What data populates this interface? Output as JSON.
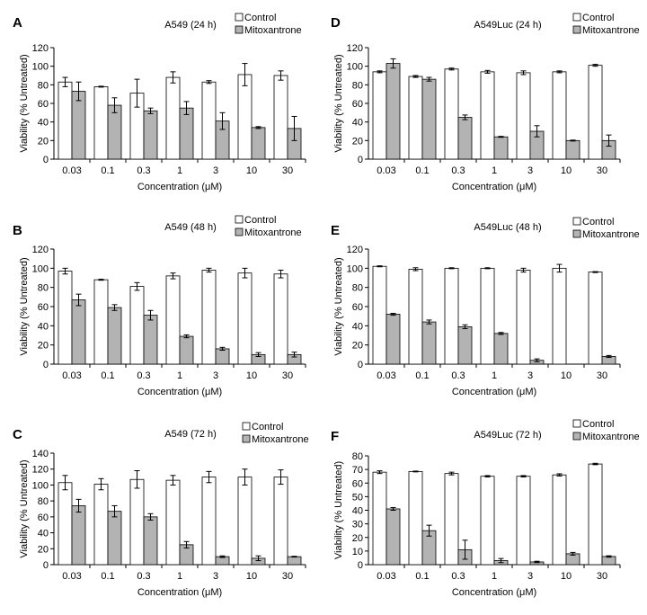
{
  "colors": {
    "control": "#ffffff",
    "mitoxantrone": "#b3b3b3",
    "axis": "#000000"
  },
  "chart_data": [
    {
      "letter": "A",
      "type": "bar",
      "title": "A549 (24 h)",
      "xlabel": "Concentration (μM)",
      "ylabel": "Viability (% Untreated)",
      "ylim": [
        0,
        120
      ],
      "yticks": [
        0,
        20,
        40,
        60,
        80,
        100,
        120
      ],
      "categories": [
        "0.03",
        "0.1",
        "0.3",
        "1",
        "3",
        "10",
        "30"
      ],
      "legend": "top-right",
      "series": [
        {
          "name": "Control",
          "values": [
            83,
            78,
            71,
            88,
            83,
            91,
            90
          ],
          "errors": [
            5,
            0.5,
            15,
            6,
            1.5,
            12,
            5
          ]
        },
        {
          "name": "Mitoxantrone",
          "values": [
            73,
            58,
            52,
            55,
            41,
            34,
            33
          ],
          "errors": [
            10,
            8,
            3,
            7,
            9,
            1,
            13
          ]
        }
      ]
    },
    {
      "letter": "D",
      "type": "bar",
      "title": "A549Luc (24 h)",
      "xlabel": "Concentration (μM)",
      "ylabel": "Viability (% Untreated)",
      "ylim": [
        0,
        120
      ],
      "yticks": [
        0,
        20,
        40,
        60,
        80,
        100,
        120
      ],
      "categories": [
        "0.03",
        "0.1",
        "0.3",
        "1",
        "3",
        "10",
        "30"
      ],
      "legend": "top-right",
      "series": [
        {
          "name": "Control",
          "values": [
            94,
            89,
            97,
            94,
            93,
            94,
            101
          ],
          "errors": [
            1,
            1,
            1,
            1.5,
            2,
            1,
            1
          ]
        },
        {
          "name": "Mitoxantrone",
          "values": [
            103,
            86,
            45,
            24,
            30,
            20,
            20
          ],
          "errors": [
            5,
            2,
            2.5,
            0.5,
            6,
            0.5,
            6
          ]
        }
      ]
    },
    {
      "letter": "B",
      "type": "bar",
      "title": "A549 (48 h)",
      "xlabel": "Concentration (μM)",
      "ylabel": "Viability (% Untreated)",
      "ylim": [
        0,
        120
      ],
      "yticks": [
        0,
        20,
        40,
        60,
        80,
        100,
        120
      ],
      "categories": [
        "0.03",
        "0.1",
        "0.3",
        "1",
        "3",
        "10",
        "30"
      ],
      "legend": "top-right",
      "series": [
        {
          "name": "Control",
          "values": [
            97,
            88,
            81,
            92,
            98,
            95,
            94
          ],
          "errors": [
            3,
            0.5,
            4,
            3,
            2,
            5,
            4
          ]
        },
        {
          "name": "Mitoxantrone",
          "values": [
            67,
            59,
            51,
            29,
            16,
            10,
            10
          ],
          "errors": [
            6,
            3,
            5,
            1.5,
            1.5,
            2,
            2.5
          ]
        }
      ]
    },
    {
      "letter": "E",
      "type": "bar",
      "title": "A549Luc (48 h)",
      "xlabel": "Concentration (μM)",
      "ylabel": "Viability (% Untreated)",
      "ylim": [
        0,
        120
      ],
      "yticks": [
        0,
        20,
        40,
        60,
        80,
        100,
        120
      ],
      "categories": [
        "0.03",
        "0.1",
        "0.3",
        "1",
        "3",
        "10",
        "30"
      ],
      "legend": "top-right",
      "series": [
        {
          "name": "Control",
          "values": [
            102,
            99,
            100,
            100,
            98,
            100,
            96
          ],
          "errors": [
            0.5,
            1.5,
            0.5,
            0.5,
            2,
            4,
            0.5
          ]
        },
        {
          "name": "Mitoxantrone",
          "values": [
            52,
            44,
            39,
            32,
            4,
            0,
            8
          ],
          "errors": [
            1,
            2,
            2,
            1,
            1.5,
            0,
            1
          ]
        }
      ]
    },
    {
      "letter": "C",
      "type": "bar",
      "title": "A549 (72 h)",
      "xlabel": "Concentration (μM)",
      "ylabel": "Viability (% Untreated)",
      "ylim": [
        0,
        140
      ],
      "yticks": [
        0,
        20,
        40,
        60,
        80,
        100,
        120,
        140
      ],
      "categories": [
        "0.03",
        "0.1",
        "0.3",
        "1",
        "3",
        "10",
        "30"
      ],
      "legend": "top-right",
      "series": [
        {
          "name": "Control",
          "values": [
            103,
            101,
            107,
            106,
            110,
            110,
            110
          ],
          "errors": [
            9,
            7,
            11,
            6,
            7,
            10,
            9
          ]
        },
        {
          "name": "Mitoxantrone",
          "values": [
            74,
            67,
            60,
            25,
            10,
            8,
            10
          ],
          "errors": [
            8,
            7,
            4,
            4,
            1,
            3,
            0.5
          ]
        }
      ]
    },
    {
      "letter": "F",
      "type": "bar",
      "title": "A549Luc (72 h)",
      "xlabel": "Concentration (μM)",
      "ylabel": "Viability (% Untreated)",
      "ylim": [
        0,
        80
      ],
      "yticks": [
        0,
        10,
        20,
        30,
        40,
        50,
        60,
        70,
        80
      ],
      "categories": [
        "0.03",
        "0.1",
        "0.3",
        "1",
        "3",
        "10",
        "30"
      ],
      "legend": "top-right",
      "series": [
        {
          "name": "Control",
          "values": [
            68,
            68.5,
            67,
            65,
            65,
            66,
            74
          ],
          "errors": [
            1,
            0.3,
            1,
            0.5,
            0.5,
            0.8,
            0.5
          ]
        },
        {
          "name": "Mitoxantrone",
          "values": [
            41,
            25,
            11,
            3,
            2,
            8,
            6
          ],
          "errors": [
            1,
            4,
            7,
            1.5,
            0.5,
            1,
            0.5
          ]
        }
      ]
    }
  ]
}
